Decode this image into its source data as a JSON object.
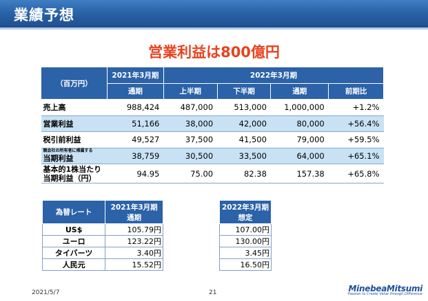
{
  "header": {
    "title": "業績予想"
  },
  "headline": "営業利益は800億円",
  "main_table": {
    "unit_label": "（百万円）",
    "fy2021_label": "2021年3月期",
    "fy2022_label": "2022年3月期",
    "col_full_year": "通期",
    "col_first_half": "上半期",
    "col_second_half": "下半期",
    "col_full_year_2": "通期",
    "col_yoy": "前期比",
    "rows": [
      {
        "label": "売上高",
        "fy2021": "988,424",
        "h1": "487,000",
        "h2": "513,000",
        "full": "1,000,000",
        "yoy": "+1.2%"
      },
      {
        "label": "営業利益",
        "fy2021": "51,166",
        "h1": "38,000",
        "h2": "42,000",
        "full": "80,000",
        "yoy": "+56.4%"
      },
      {
        "label": "税引前利益",
        "fy2021": "49,527",
        "h1": "37,500",
        "h2": "41,500",
        "full": "79,000",
        "yoy": "+59.5%"
      },
      {
        "label_note": "親会社の所有者に帰属する",
        "label": "当期利益",
        "fy2021": "38,759",
        "h1": "30,500",
        "h2": "33,500",
        "full": "64,000",
        "yoy": "+65.1%"
      },
      {
        "label_line1": "基本的1株当たり",
        "label": "当期利益（円）",
        "fy2021": "94.95",
        "h1": "75.00",
        "h2": "82.38",
        "full": "157.38",
        "yoy": "+65.8%"
      }
    ]
  },
  "fx_table": {
    "label_header": "為替レート",
    "fy2021_label": "2021年3月期",
    "fy2021_sub": "通期",
    "rows": [
      {
        "label": "US$",
        "value": "105.79円"
      },
      {
        "label": "ユーロ",
        "value": "123.22円"
      },
      {
        "label": "タイバーツ",
        "value": "3.40円"
      },
      {
        "label": "人民元",
        "value": "15.52円"
      }
    ]
  },
  "fx_forecast": {
    "fy2022_label": "2022年3月期",
    "fy2022_sub": "想定",
    "values": [
      "107.00円",
      "130.00円",
      "3.45円",
      "16.50円"
    ]
  },
  "footer": {
    "date": "2021/5/7",
    "page": "21",
    "logo_name": "MinebeaMitsumi",
    "logo_tag": "Passion to Create Value through Difference"
  },
  "colors": {
    "header_blue": "#2a63a8",
    "headline_orange": "#e8421e",
    "row_alt": "#c8e2f4"
  }
}
